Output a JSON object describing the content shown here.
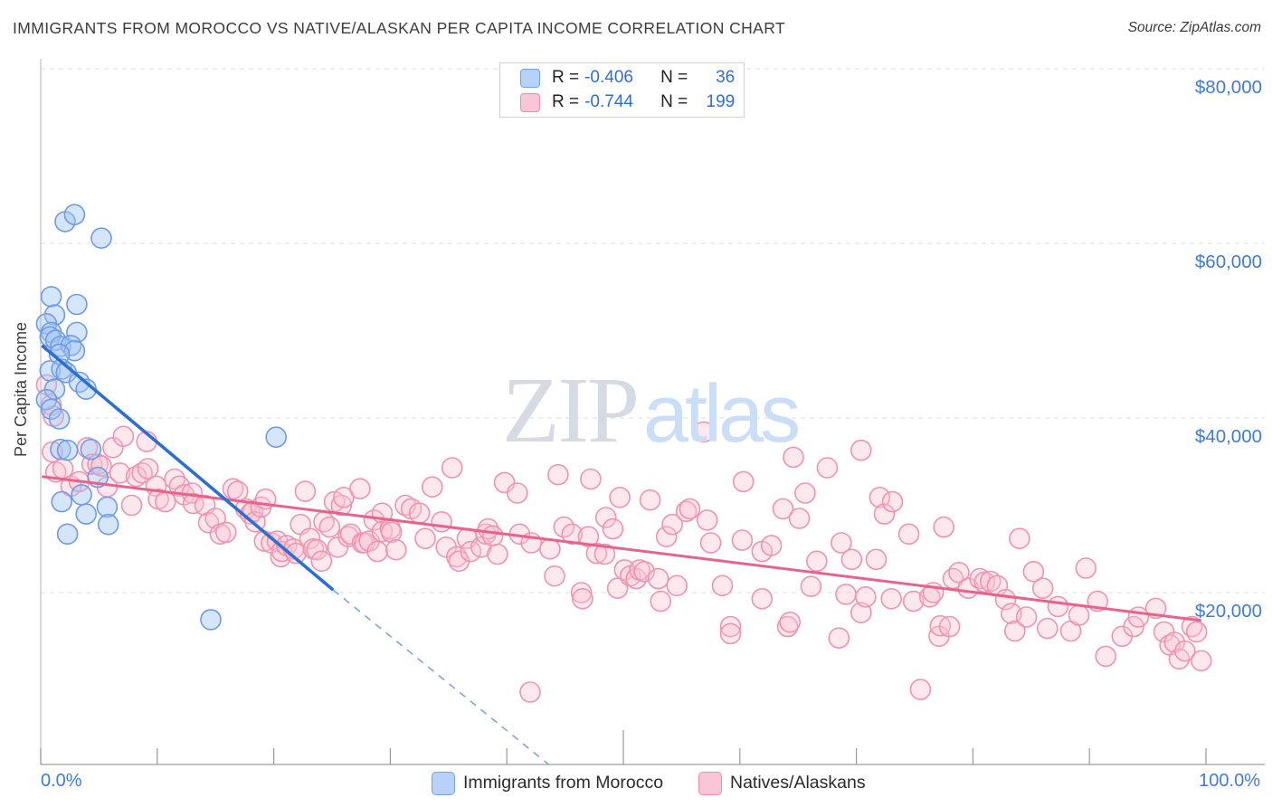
{
  "header": {
    "title": "IMMIGRANTS FROM MOROCCO VS NATIVE/ALASKAN PER CAPITA INCOME CORRELATION CHART",
    "source": "Source: ZipAtlas.com"
  },
  "stats_box": {
    "rows": [
      {
        "series": "Immigrants from Morocco",
        "r_label": "R =",
        "r_value": "-0.406",
        "n_label": "N =",
        "n_value": "36"
      },
      {
        "series": "Natives/Alaskans",
        "r_label": "R =",
        "r_value": "-0.744",
        "n_label": "N =",
        "n_value": "199"
      }
    ]
  },
  "watermark": {
    "zip": "ZIP",
    "atlas": "atlas"
  },
  "y_axis": {
    "title": "Per Capita Income",
    "ticks": [
      {
        "value": 80000,
        "label": "$80,000"
      },
      {
        "value": 60000,
        "label": "$60,000"
      },
      {
        "value": 40000,
        "label": "$40,000"
      },
      {
        "value": 20000,
        "label": "$20,000"
      }
    ]
  },
  "x_axis": {
    "min_label": "0.0%",
    "max_label": "100.0%",
    "tick_percents": [
      0,
      10,
      20,
      30,
      40,
      50,
      60,
      70,
      80,
      90,
      100
    ]
  },
  "legend": {
    "items": [
      {
        "label": "Immigrants from Morocco",
        "color_key": "blue"
      },
      {
        "label": "Natives/Alaskans",
        "color_key": "pink"
      }
    ]
  },
  "colors": {
    "axis_label_blue": "#3e7bdb",
    "blue_point_stroke": "#6f9be4",
    "blue_point_fill": "rgba(158,195,243,0.42)",
    "pink_point_stroke": "#ef93b1",
    "pink_point_fill": "rgba(249,195,211,0.38)",
    "blue_trend": "#2c6fd4",
    "blue_trend_dashed": "#7fa3e0",
    "pink_trend": "#e7638d",
    "gridline": "#dcdcdc",
    "y_axis_line": "#c6c6c6",
    "x_axis_line": "#aeaeae",
    "tick": "#9a9a9a"
  },
  "chart_data": {
    "type": "scatter",
    "title": "IMMIGRANTS FROM MOROCCO VS NATIVE/ALASKAN PER CAPITA INCOME CORRELATION CHART",
    "xlabel": "",
    "ylabel": "Per Capita Income",
    "xlim": [
      0,
      100
    ],
    "ylim": [
      0,
      81000
    ],
    "x_units": "percent immigrants from Morocco",
    "y_units": "USD per capita income",
    "grid": "horizontal-dashed",
    "legend_position": "bottom",
    "series": [
      {
        "name": "Immigrants from Morocco",
        "R": -0.406,
        "N": 36,
        "points": [
          [
            2.1,
            62500
          ],
          [
            2.9,
            63300
          ],
          [
            5.2,
            60600
          ],
          [
            0.9,
            53900
          ],
          [
            3.1,
            53000
          ],
          [
            1.2,
            51800
          ],
          [
            0.5,
            50800
          ],
          [
            0.9,
            49800
          ],
          [
            3.1,
            49800
          ],
          [
            0.8,
            49300
          ],
          [
            1.3,
            48900
          ],
          [
            1.7,
            48200
          ],
          [
            2.6,
            48300
          ],
          [
            2.9,
            47700
          ],
          [
            1.6,
            47300
          ],
          [
            0.8,
            45400
          ],
          [
            1.8,
            45600
          ],
          [
            2.2,
            45200
          ],
          [
            3.3,
            44100
          ],
          [
            1.2,
            43300
          ],
          [
            3.9,
            43300
          ],
          [
            0.5,
            42100
          ],
          [
            0.9,
            41000
          ],
          [
            1.6,
            39900
          ],
          [
            20.2,
            37800
          ],
          [
            1.7,
            36400
          ],
          [
            2.3,
            36300
          ],
          [
            4.3,
            36400
          ],
          [
            4.9,
            33200
          ],
          [
            3.5,
            31200
          ],
          [
            1.8,
            30400
          ],
          [
            5.7,
            29800
          ],
          [
            3.9,
            29000
          ],
          [
            5.8,
            27800
          ],
          [
            2.3,
            26700
          ],
          [
            14.6,
            16900
          ]
        ]
      },
      {
        "name": "Natives/Alaskans",
        "R": -0.744,
        "N": 199,
        "points": [
          [
            0.5,
            43800
          ],
          [
            0.9,
            41500
          ],
          [
            1.1,
            40200
          ],
          [
            1.0,
            36100
          ],
          [
            1.3,
            33800
          ],
          [
            1.9,
            34200
          ],
          [
            2.6,
            32200
          ],
          [
            3.3,
            32700
          ],
          [
            4.0,
            36600
          ],
          [
            4.4,
            34700
          ],
          [
            4.9,
            34700
          ],
          [
            5.2,
            34500
          ],
          [
            6.2,
            36600
          ],
          [
            5.7,
            32100
          ],
          [
            6.8,
            33700
          ],
          [
            7.1,
            37900
          ],
          [
            7.8,
            30000
          ],
          [
            8.2,
            33300
          ],
          [
            8.7,
            33700
          ],
          [
            9.1,
            37300
          ],
          [
            9.2,
            34200
          ],
          [
            9.9,
            32200
          ],
          [
            10.1,
            30700
          ],
          [
            10.7,
            30400
          ],
          [
            11.5,
            33000
          ],
          [
            11.9,
            32200
          ],
          [
            12.3,
            31200
          ],
          [
            13.0,
            31400
          ],
          [
            13.1,
            30200
          ],
          [
            14.1,
            30000
          ],
          [
            14.4,
            28000
          ],
          [
            15.0,
            28500
          ],
          [
            15.4,
            26700
          ],
          [
            15.9,
            26900
          ],
          [
            16.5,
            31900
          ],
          [
            16.9,
            31600
          ],
          [
            17.6,
            29600
          ],
          [
            18.0,
            29000
          ],
          [
            18.2,
            29300
          ],
          [
            18.4,
            28100
          ],
          [
            18.9,
            29800
          ],
          [
            19.2,
            25900
          ],
          [
            19.3,
            30700
          ],
          [
            19.8,
            25700
          ],
          [
            20.3,
            25900
          ],
          [
            20.6,
            24100
          ],
          [
            20.7,
            24700
          ],
          [
            21.1,
            25400
          ],
          [
            21.7,
            25000
          ],
          [
            21.9,
            24500
          ],
          [
            22.3,
            27800
          ],
          [
            22.7,
            31600
          ],
          [
            23.1,
            26200
          ],
          [
            23.4,
            25000
          ],
          [
            23.7,
            24900
          ],
          [
            24.1,
            23600
          ],
          [
            24.3,
            28100
          ],
          [
            24.8,
            27500
          ],
          [
            25.2,
            30400
          ],
          [
            25.5,
            25200
          ],
          [
            25.8,
            30000
          ],
          [
            26.0,
            30900
          ],
          [
            26.4,
            26400
          ],
          [
            26.6,
            26700
          ],
          [
            27.4,
            31900
          ],
          [
            27.6,
            25700
          ],
          [
            27.8,
            25700
          ],
          [
            28.2,
            25900
          ],
          [
            28.6,
            28300
          ],
          [
            28.9,
            24700
          ],
          [
            29.3,
            29100
          ],
          [
            29.3,
            27000
          ],
          [
            30.0,
            27300
          ],
          [
            30.1,
            26900
          ],
          [
            30.5,
            24900
          ],
          [
            31.3,
            30000
          ],
          [
            31.8,
            29600
          ],
          [
            32.5,
            29100
          ],
          [
            33.0,
            26200
          ],
          [
            33.6,
            32100
          ],
          [
            34.4,
            28100
          ],
          [
            34.8,
            25200
          ],
          [
            35.3,
            34300
          ],
          [
            35.7,
            24100
          ],
          [
            35.9,
            23600
          ],
          [
            36.6,
            26200
          ],
          [
            36.9,
            24700
          ],
          [
            37.8,
            25200
          ],
          [
            38.2,
            26700
          ],
          [
            38.4,
            27300
          ],
          [
            38.8,
            26500
          ],
          [
            39.2,
            24400
          ],
          [
            39.8,
            32600
          ],
          [
            40.9,
            31400
          ],
          [
            41.1,
            26700
          ],
          [
            42.0,
            8600
          ],
          [
            42.1,
            25700
          ],
          [
            43.7,
            25000
          ],
          [
            44.1,
            21900
          ],
          [
            44.4,
            33500
          ],
          [
            44.9,
            27500
          ],
          [
            45.6,
            26700
          ],
          [
            46.4,
            20000
          ],
          [
            46.5,
            19300
          ],
          [
            47.0,
            26400
          ],
          [
            47.2,
            33000
          ],
          [
            47.7,
            24500
          ],
          [
            48.4,
            24400
          ],
          [
            48.5,
            28600
          ],
          [
            49.1,
            27300
          ],
          [
            49.5,
            20500
          ],
          [
            49.7,
            30900
          ],
          [
            50.1,
            22600
          ],
          [
            50.6,
            21900
          ],
          [
            51.1,
            21600
          ],
          [
            51.4,
            22600
          ],
          [
            51.8,
            22400
          ],
          [
            52.3,
            30600
          ],
          [
            53.0,
            21600
          ],
          [
            53.2,
            19000
          ],
          [
            53.7,
            26400
          ],
          [
            54.2,
            27800
          ],
          [
            54.6,
            20800
          ],
          [
            55.4,
            29300
          ],
          [
            55.7,
            29600
          ],
          [
            56.9,
            38400
          ],
          [
            57.2,
            28300
          ],
          [
            57.5,
            25700
          ],
          [
            58.5,
            20800
          ],
          [
            59.2,
            16100
          ],
          [
            59.2,
            15300
          ],
          [
            60.2,
            26000
          ],
          [
            60.3,
            32700
          ],
          [
            61.9,
            24700
          ],
          [
            61.9,
            19300
          ],
          [
            62.7,
            25400
          ],
          [
            63.7,
            29600
          ],
          [
            64.1,
            16100
          ],
          [
            64.3,
            16600
          ],
          [
            64.6,
            35500
          ],
          [
            65.1,
            28500
          ],
          [
            65.6,
            31400
          ],
          [
            66.1,
            20700
          ],
          [
            66.6,
            23600
          ],
          [
            67.5,
            34300
          ],
          [
            68.5,
            14800
          ],
          [
            68.7,
            25700
          ],
          [
            69.1,
            19800
          ],
          [
            69.6,
            23800
          ],
          [
            70.4,
            36300
          ],
          [
            70.4,
            17700
          ],
          [
            70.8,
            19500
          ],
          [
            71.7,
            23800
          ],
          [
            72.0,
            30900
          ],
          [
            72.4,
            29000
          ],
          [
            73.0,
            19300
          ],
          [
            73.1,
            30400
          ],
          [
            74.5,
            26700
          ],
          [
            74.9,
            19000
          ],
          [
            75.5,
            8900
          ],
          [
            76.3,
            19500
          ],
          [
            76.6,
            20000
          ],
          [
            77.1,
            15000
          ],
          [
            77.2,
            16200
          ],
          [
            77.5,
            27500
          ],
          [
            78.0,
            16100
          ],
          [
            78.3,
            21600
          ],
          [
            78.8,
            22300
          ],
          [
            79.6,
            20500
          ],
          [
            80.6,
            21600
          ],
          [
            81.0,
            21200
          ],
          [
            81.5,
            21300
          ],
          [
            82.1,
            20800
          ],
          [
            82.8,
            19200
          ],
          [
            83.3,
            17600
          ],
          [
            83.6,
            15600
          ],
          [
            84.0,
            26200
          ],
          [
            84.6,
            17200
          ],
          [
            85.2,
            22400
          ],
          [
            86.0,
            20500
          ],
          [
            86.4,
            15900
          ],
          [
            87.3,
            18400
          ],
          [
            88.4,
            15600
          ],
          [
            89.1,
            17400
          ],
          [
            89.7,
            22800
          ],
          [
            90.7,
            19000
          ],
          [
            91.4,
            12700
          ],
          [
            92.8,
            15000
          ],
          [
            93.8,
            16100
          ],
          [
            94.2,
            17200
          ],
          [
            95.7,
            18200
          ],
          [
            96.4,
            15500
          ],
          [
            96.9,
            14000
          ],
          [
            97.3,
            14300
          ],
          [
            97.7,
            12400
          ],
          [
            98.2,
            13300
          ],
          [
            98.8,
            16100
          ],
          [
            99.2,
            15500
          ],
          [
            99.6,
            12200
          ]
        ]
      }
    ],
    "trend_lines": [
      {
        "series": "Immigrants from Morocco",
        "style": "solid",
        "from": [
          0.1,
          48300
        ],
        "to": [
          25.1,
          20300
        ]
      },
      {
        "series": "Immigrants from Morocco",
        "style": "dashed",
        "from": [
          25.1,
          20300
        ],
        "to": [
          43.6,
          300
        ]
      },
      {
        "series": "Natives/Alaskans",
        "style": "solid",
        "from": [
          0.1,
          33300
        ],
        "to": [
          99.6,
          16800
        ]
      }
    ]
  }
}
